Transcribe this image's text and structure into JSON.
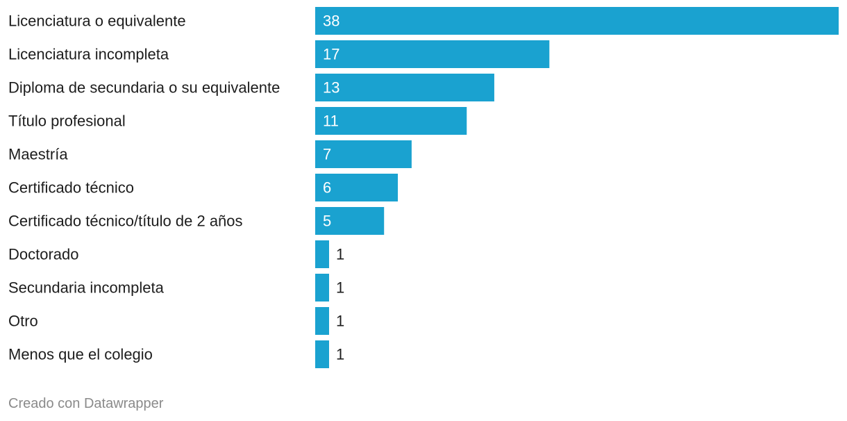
{
  "chart_data": {
    "type": "bar",
    "orientation": "horizontal",
    "categories": [
      "Licenciatura o equivalente",
      "Licenciatura incompleta",
      "Diploma de secundaria o su equivalente",
      "Título profesional",
      "Maestría",
      "Certificado técnico",
      "Certificado técnico/título de 2 años",
      "Doctorado",
      "Secundaria incompleta",
      "Otro",
      "Menos que el colegio"
    ],
    "values": [
      38,
      17,
      13,
      11,
      7,
      6,
      5,
      1,
      1,
      1,
      1
    ],
    "xlim": [
      0,
      38
    ],
    "grid": false,
    "legend": "none",
    "bar_color": "#1aa2d0",
    "label_inside_color": "#ffffff",
    "label_outside_color": "#1d1d1d"
  },
  "footer": {
    "credit": "Creado con Datawrapper"
  }
}
